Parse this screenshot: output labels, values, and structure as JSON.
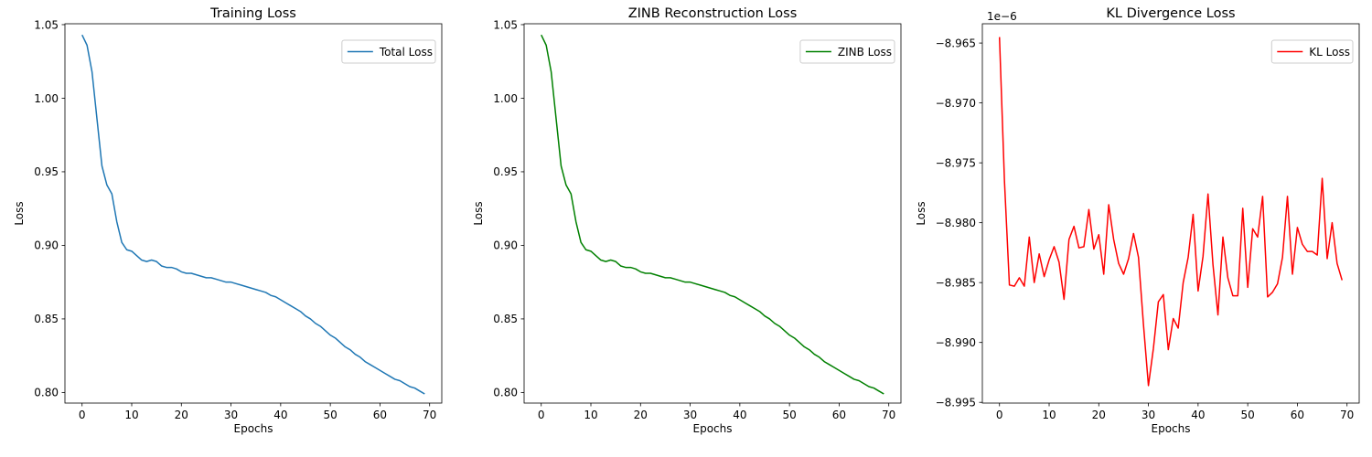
{
  "chart_data": [
    {
      "type": "line",
      "title": "Training Loss",
      "xlabel": "Epochs",
      "ylabel": "Loss",
      "xlim": [
        -3.45,
        72.45
      ],
      "ylim": [
        0.7928,
        1.0506
      ],
      "xticks": [
        0,
        10,
        20,
        30,
        40,
        50,
        60,
        70
      ],
      "xtick_labels": [
        "0",
        "10",
        "20",
        "30",
        "40",
        "50",
        "60",
        "70"
      ],
      "yticks": [
        0.8,
        0.85,
        0.9,
        0.95,
        1.0,
        1.05
      ],
      "ytick_labels": [
        "0.80",
        "0.85",
        "0.90",
        "0.95",
        "1.00",
        "1.05"
      ],
      "offset_text": "",
      "legend_position": "upper right",
      "grid": false,
      "series": [
        {
          "name": "Total Loss",
          "color": "#1f77b4",
          "x": [
            0,
            1,
            2,
            3,
            4,
            5,
            6,
            7,
            8,
            9,
            10,
            11,
            12,
            13,
            14,
            15,
            16,
            17,
            18,
            19,
            20,
            21,
            22,
            23,
            24,
            25,
            26,
            27,
            28,
            29,
            30,
            31,
            32,
            33,
            34,
            35,
            36,
            37,
            38,
            39,
            40,
            41,
            42,
            43,
            44,
            45,
            46,
            47,
            48,
            49,
            50,
            51,
            52,
            53,
            54,
            55,
            56,
            57,
            58,
            59,
            60,
            61,
            62,
            63,
            64,
            65,
            66,
            67,
            68,
            69
          ],
          "values": [
            1.043,
            1.036,
            1.018,
            0.986,
            0.954,
            0.941,
            0.935,
            0.916,
            0.902,
            0.897,
            0.896,
            0.893,
            0.89,
            0.889,
            0.89,
            0.889,
            0.886,
            0.885,
            0.885,
            0.884,
            0.882,
            0.881,
            0.881,
            0.88,
            0.879,
            0.878,
            0.878,
            0.877,
            0.876,
            0.875,
            0.875,
            0.874,
            0.873,
            0.872,
            0.871,
            0.87,
            0.869,
            0.868,
            0.866,
            0.865,
            0.863,
            0.861,
            0.859,
            0.857,
            0.855,
            0.852,
            0.85,
            0.847,
            0.845,
            0.842,
            0.839,
            0.837,
            0.834,
            0.831,
            0.829,
            0.826,
            0.824,
            0.821,
            0.819,
            0.817,
            0.815,
            0.813,
            0.811,
            0.809,
            0.808,
            0.806,
            0.804,
            0.803,
            0.801,
            0.799
          ]
        }
      ]
    },
    {
      "type": "line",
      "title": "ZINB Reconstruction Loss",
      "xlabel": "Epochs",
      "ylabel": "Loss",
      "xlim": [
        -3.45,
        72.45
      ],
      "ylim": [
        0.7928,
        1.0506
      ],
      "xticks": [
        0,
        10,
        20,
        30,
        40,
        50,
        60,
        70
      ],
      "xtick_labels": [
        "0",
        "10",
        "20",
        "30",
        "40",
        "50",
        "60",
        "70"
      ],
      "yticks": [
        0.8,
        0.85,
        0.9,
        0.95,
        1.0,
        1.05
      ],
      "ytick_labels": [
        "0.80",
        "0.85",
        "0.90",
        "0.95",
        "1.00",
        "1.05"
      ],
      "offset_text": "",
      "legend_position": "upper right",
      "grid": false,
      "series": [
        {
          "name": "ZINB Loss",
          "color": "#008000",
          "x": [
            0,
            1,
            2,
            3,
            4,
            5,
            6,
            7,
            8,
            9,
            10,
            11,
            12,
            13,
            14,
            15,
            16,
            17,
            18,
            19,
            20,
            21,
            22,
            23,
            24,
            25,
            26,
            27,
            28,
            29,
            30,
            31,
            32,
            33,
            34,
            35,
            36,
            37,
            38,
            39,
            40,
            41,
            42,
            43,
            44,
            45,
            46,
            47,
            48,
            49,
            50,
            51,
            52,
            53,
            54,
            55,
            56,
            57,
            58,
            59,
            60,
            61,
            62,
            63,
            64,
            65,
            66,
            67,
            68,
            69
          ],
          "values": [
            1.043,
            1.036,
            1.018,
            0.986,
            0.954,
            0.941,
            0.935,
            0.916,
            0.902,
            0.897,
            0.896,
            0.893,
            0.89,
            0.889,
            0.89,
            0.889,
            0.886,
            0.885,
            0.885,
            0.884,
            0.882,
            0.881,
            0.881,
            0.88,
            0.879,
            0.878,
            0.878,
            0.877,
            0.876,
            0.875,
            0.875,
            0.874,
            0.873,
            0.872,
            0.871,
            0.87,
            0.869,
            0.868,
            0.866,
            0.865,
            0.863,
            0.861,
            0.859,
            0.857,
            0.855,
            0.852,
            0.85,
            0.847,
            0.845,
            0.842,
            0.839,
            0.837,
            0.834,
            0.831,
            0.829,
            0.826,
            0.824,
            0.821,
            0.819,
            0.817,
            0.815,
            0.813,
            0.811,
            0.809,
            0.808,
            0.806,
            0.804,
            0.803,
            0.801,
            0.799
          ]
        }
      ]
    },
    {
      "type": "line",
      "title": "KL Divergence Loss",
      "xlabel": "Epochs",
      "ylabel": "Loss",
      "xlim": [
        -3.45,
        72.45
      ],
      "ylim": [
        -8.99506,
        -8.96339
      ],
      "xticks": [
        0,
        10,
        20,
        30,
        40,
        50,
        60,
        70
      ],
      "xtick_labels": [
        "0",
        "10",
        "20",
        "30",
        "40",
        "50",
        "60",
        "70"
      ],
      "yticks": [
        -8.995,
        -8.99,
        -8.985,
        -8.98,
        -8.975,
        -8.97,
        -8.965
      ],
      "ytick_labels": [
        "−8.995",
        "−8.990",
        "−8.985",
        "−8.980",
        "−8.975",
        "−8.970",
        "−8.965"
      ],
      "offset_text": "1e−6",
      "legend_position": "upper right",
      "grid": false,
      "series": [
        {
          "name": "KL Loss",
          "color": "#ff0000",
          "x": [
            0,
            1,
            2,
            3,
            4,
            5,
            6,
            7,
            8,
            9,
            10,
            11,
            12,
            13,
            14,
            15,
            16,
            17,
            18,
            19,
            20,
            21,
            22,
            23,
            24,
            25,
            26,
            27,
            28,
            29,
            30,
            31,
            32,
            33,
            34,
            35,
            36,
            37,
            38,
            39,
            40,
            41,
            42,
            43,
            44,
            45,
            46,
            47,
            48,
            49,
            50,
            51,
            52,
            53,
            54,
            55,
            56,
            57,
            58,
            59,
            60,
            61,
            62,
            63,
            64,
            65,
            66,
            67,
            68,
            69
          ],
          "values": [
            -8.9645,
            -8.9765,
            -8.9852,
            -8.9853,
            -8.9846,
            -8.9853,
            -8.9812,
            -8.985,
            -8.9826,
            -8.9845,
            -8.9831,
            -8.982,
            -8.9833,
            -8.9864,
            -8.9814,
            -8.9803,
            -8.9821,
            -8.982,
            -8.9789,
            -8.9822,
            -8.981,
            -8.9843,
            -8.9785,
            -8.9814,
            -8.9834,
            -8.9843,
            -8.983,
            -8.9809,
            -8.9829,
            -8.9885,
            -8.9936,
            -8.9905,
            -8.9866,
            -8.986,
            -8.9906,
            -8.988,
            -8.9888,
            -8.985,
            -8.9829,
            -8.9793,
            -8.9857,
            -8.9828,
            -8.9776,
            -8.9835,
            -8.9877,
            -8.9812,
            -8.9846,
            -8.9861,
            -8.9861,
            -8.9788,
            -8.9854,
            -8.9805,
            -8.9812,
            -8.9778,
            -8.9862,
            -8.9858,
            -8.9851,
            -8.9829,
            -8.9778,
            -8.9843,
            -8.9804,
            -8.9818,
            -8.9824,
            -8.9824,
            -8.9827,
            -8.9763,
            -8.983,
            -8.98,
            -8.9834,
            -8.9848
          ]
        }
      ]
    }
  ]
}
